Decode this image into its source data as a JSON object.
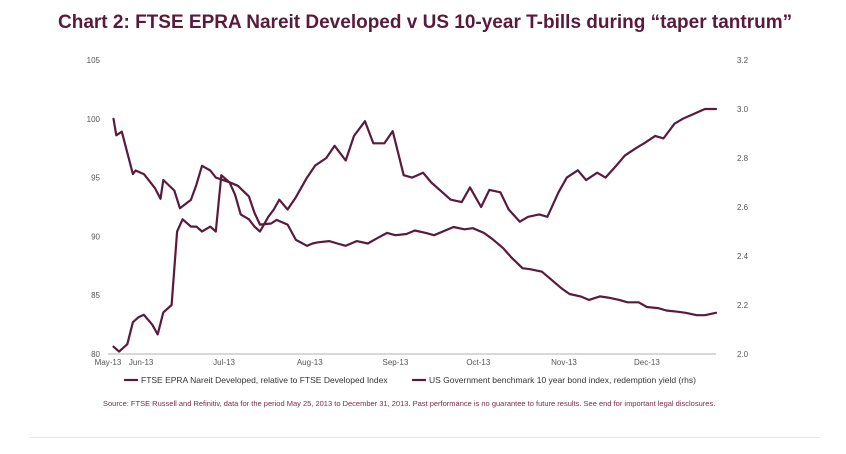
{
  "title": "Chart 2: FTSE EPRA Nareit Developed v US 10-year T-bills during “taper tantrum”",
  "source": "Source: FTSE Russell and Refinitiv, data for the period May 25, 2013 to December 31, 2013. Past performance is no guarantee to future results. See end for important legal disclosures.",
  "colors": {
    "series": "#5a1a3c",
    "title": "#5a1a3c",
    "source": "#7a2a4a"
  },
  "chart_data": {
    "type": "line",
    "title": "Chart 2: FTSE EPRA Nareit Developed v US 10-year T-bills during “taper tantrum”",
    "x_ticks": [
      "May-13",
      "Jun-13",
      "Jul-13",
      "Aug-13",
      "Sep-13",
      "Oct-13",
      "Nov-13",
      "Dec-13"
    ],
    "y_left": {
      "ylim": [
        80,
        105
      ],
      "ticks": [
        "80",
        "85",
        "90",
        "95",
        "100",
        "105"
      ]
    },
    "y_right": {
      "ylim": [
        2.0,
        3.2
      ],
      "ticks": [
        "2.0",
        "2.2",
        "2.4",
        "2.6",
        "2.8",
        "3.0",
        "3.2"
      ]
    },
    "grid": false,
    "legend_position": "bottom",
    "series": [
      {
        "name": "FTSE EPRA Nareit Developed, relative to FTSE Developed Index",
        "axis": "left",
        "x": [
          "2013-05-27",
          "2013-05-28",
          "2013-05-30",
          "2013-06-03",
          "2013-06-04",
          "2013-06-07",
          "2013-06-11",
          "2013-06-13",
          "2013-06-14",
          "2013-06-18",
          "2013-06-20",
          "2013-06-24",
          "2013-06-26",
          "2013-06-28",
          "2013-07-01",
          "2013-07-03",
          "2013-07-08",
          "2013-07-11",
          "2013-07-15",
          "2013-07-17",
          "2013-07-19",
          "2013-07-23",
          "2013-07-25",
          "2013-07-29",
          "2013-08-01",
          "2013-08-05",
          "2013-08-07",
          "2013-08-09",
          "2013-08-13",
          "2013-08-16",
          "2013-08-19",
          "2013-08-23",
          "2013-08-27",
          "2013-08-30",
          "2013-09-03",
          "2013-09-06",
          "2013-09-10",
          "2013-09-13",
          "2013-09-17",
          "2013-09-20",
          "2013-09-24",
          "2013-09-27",
          "2013-10-01",
          "2013-10-04",
          "2013-10-08",
          "2013-10-11",
          "2013-10-15",
          "2013-10-18",
          "2013-10-22",
          "2013-10-25",
          "2013-10-29",
          "2013-11-01",
          "2013-11-05",
          "2013-11-08",
          "2013-11-12",
          "2013-11-15",
          "2013-11-19",
          "2013-11-22",
          "2013-11-26",
          "2013-11-29",
          "2013-12-03",
          "2013-12-06",
          "2013-12-10",
          "2013-12-13",
          "2013-12-17",
          "2013-12-20",
          "2013-12-24",
          "2013-12-27",
          "2013-12-31"
        ],
        "y": [
          100,
          98.6,
          98.9,
          95.3,
          95.6,
          95.3,
          94.1,
          93.2,
          94.8,
          93.9,
          92.4,
          93.1,
          94.4,
          96,
          95.6,
          95,
          94.6,
          94.3,
          93.4,
          92,
          91,
          91.1,
          91.4,
          91,
          89.7,
          89.2,
          89.4,
          89.5,
          89.6,
          89.4,
          89.2,
          89.6,
          89.4,
          89.8,
          90.3,
          90.1,
          90.2,
          90.5,
          90.3,
          90.1,
          90.5,
          90.8,
          90.6,
          90.7,
          90.3,
          89.8,
          89,
          88.2,
          87.3,
          87.2,
          87,
          86.4,
          85.6,
          85.1,
          84.9,
          84.6,
          84.9,
          84.8,
          84.6,
          84.4,
          84.4,
          84,
          83.9,
          83.7,
          83.6,
          83.5,
          83.3,
          83.3,
          83.5
        ]
      },
      {
        "name": "US Government benchmark 10 year bond index, redemption yield (rhs)",
        "axis": "right",
        "x": [
          "2013-05-27",
          "2013-05-29",
          "2013-06-01",
          "2013-06-03",
          "2013-06-05",
          "2013-06-07",
          "2013-06-10",
          "2013-06-12",
          "2013-06-14",
          "2013-06-17",
          "2013-06-19",
          "2013-06-21",
          "2013-06-24",
          "2013-06-26",
          "2013-06-28",
          "2013-07-01",
          "2013-07-03",
          "2013-07-05",
          "2013-07-08",
          "2013-07-10",
          "2013-07-12",
          "2013-07-15",
          "2013-07-17",
          "2013-07-19",
          "2013-07-22",
          "2013-07-24",
          "2013-07-26",
          "2013-07-29",
          "2013-08-01",
          "2013-08-05",
          "2013-08-08",
          "2013-08-12",
          "2013-08-15",
          "2013-08-19",
          "2013-08-22",
          "2013-08-26",
          "2013-08-29",
          "2013-09-02",
          "2013-09-05",
          "2013-09-09",
          "2013-09-12",
          "2013-09-16",
          "2013-09-19",
          "2013-09-23",
          "2013-09-26",
          "2013-09-30",
          "2013-10-03",
          "2013-10-07",
          "2013-10-10",
          "2013-10-14",
          "2013-10-17",
          "2013-10-21",
          "2013-10-24",
          "2013-10-28",
          "2013-10-31",
          "2013-11-04",
          "2013-11-07",
          "2013-11-11",
          "2013-11-14",
          "2013-11-18",
          "2013-11-21",
          "2013-11-25",
          "2013-11-28",
          "2013-12-02",
          "2013-12-05",
          "2013-12-09",
          "2013-12-12",
          "2013-12-16",
          "2013-12-19",
          "2013-12-23",
          "2013-12-27",
          "2013-12-31"
        ],
        "y": [
          2.03,
          2.01,
          2.04,
          2.13,
          2.15,
          2.16,
          2.12,
          2.08,
          2.17,
          2.2,
          2.5,
          2.55,
          2.52,
          2.52,
          2.5,
          2.52,
          2.5,
          2.73,
          2.7,
          2.65,
          2.57,
          2.55,
          2.52,
          2.5,
          2.56,
          2.59,
          2.63,
          2.59,
          2.64,
          2.72,
          2.77,
          2.8,
          2.85,
          2.79,
          2.89,
          2.95,
          2.86,
          2.86,
          2.91,
          2.73,
          2.72,
          2.74,
          2.7,
          2.66,
          2.63,
          2.62,
          2.68,
          2.6,
          2.67,
          2.66,
          2.59,
          2.54,
          2.56,
          2.57,
          2.56,
          2.66,
          2.72,
          2.75,
          2.71,
          2.74,
          2.72,
          2.77,
          2.81,
          2.84,
          2.86,
          2.89,
          2.88,
          2.94,
          2.96,
          2.98,
          3.0,
          3.0
        ]
      }
    ]
  }
}
